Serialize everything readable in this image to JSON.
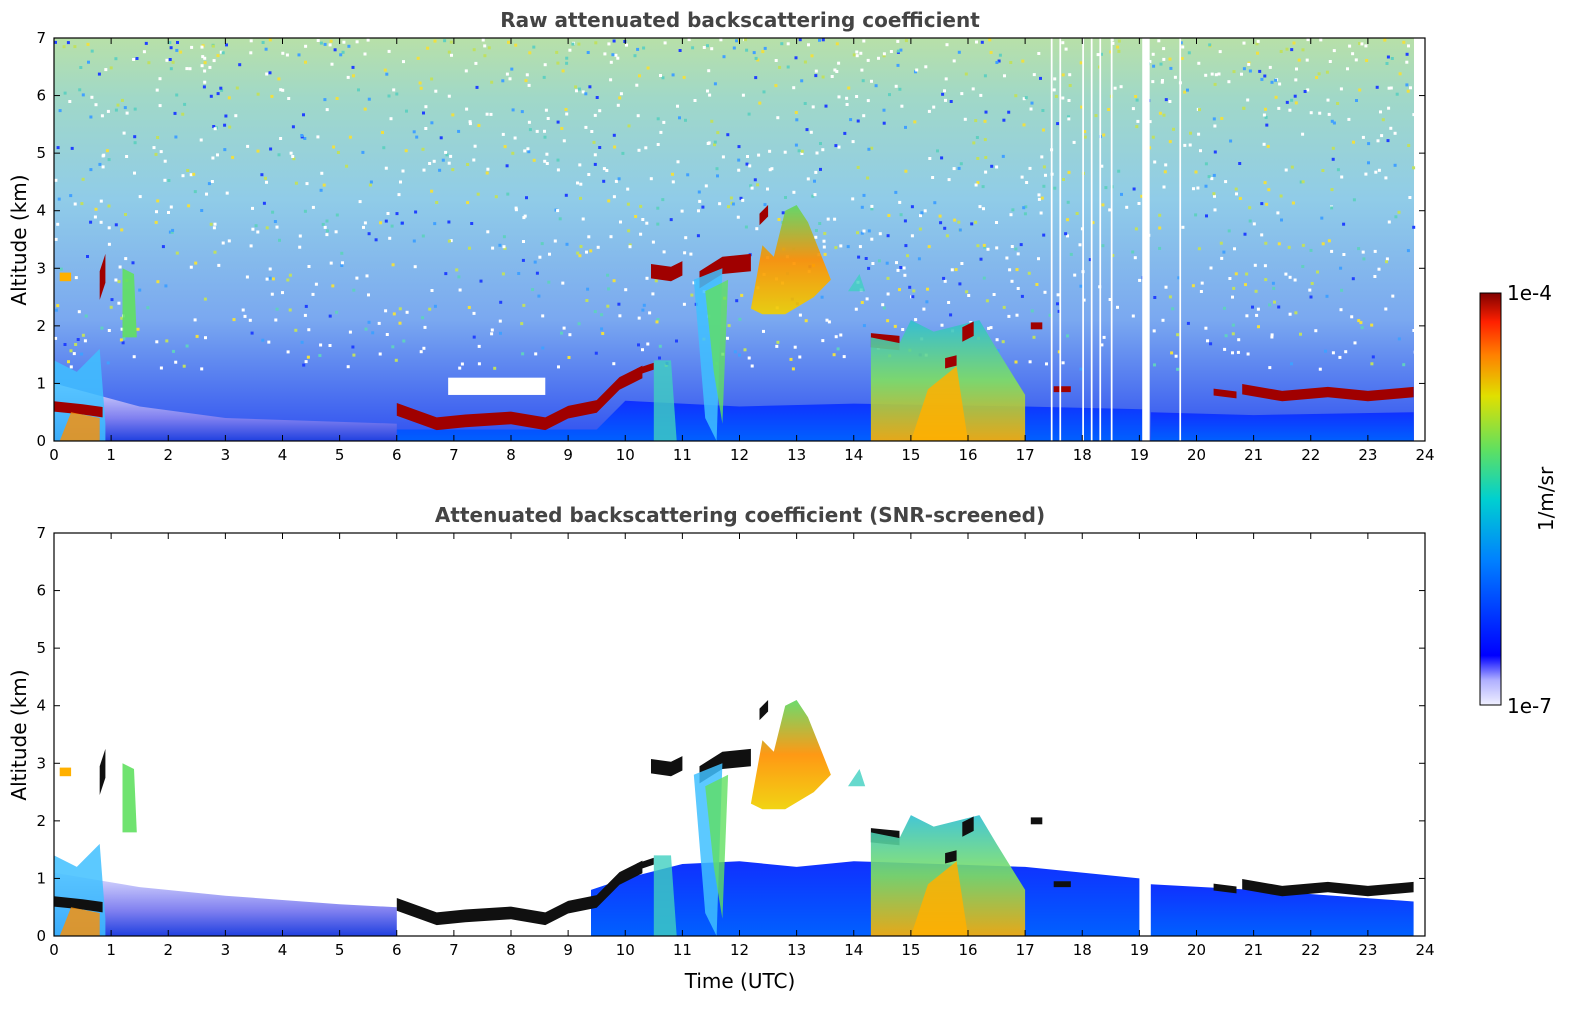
{
  "chart_data": [
    {
      "type": "heatmap",
      "title": "Raw attenuated backscattering coefficient",
      "xlabel": "",
      "ylabel": "Altitude (km)",
      "xlim": [
        0,
        24
      ],
      "ylim": [
        0,
        7
      ],
      "x_ticks": [
        "0",
        "1",
        "2",
        "3",
        "4",
        "5",
        "6",
        "7",
        "8",
        "9",
        "10",
        "11",
        "12",
        "13",
        "14",
        "15",
        "16",
        "17",
        "18",
        "19",
        "20",
        "21",
        "22",
        "23",
        "24"
      ],
      "y_ticks": [
        "0",
        "1",
        "2",
        "3",
        "4",
        "5",
        "6",
        "7"
      ],
      "features": [
        {
          "name": "boundary-layer",
          "t_start": 0,
          "t_end": 23.8,
          "alt_top": 0.9
        },
        {
          "name": "low-cloud",
          "t_start": 0,
          "t_end": 0.9,
          "alt": 0.6
        },
        {
          "name": "low-cloud",
          "t_start": 6.0,
          "t_end": 10.3,
          "alt_start": 0.5,
          "alt_end": 1.2
        },
        {
          "name": "mid-cloud",
          "t_start": 10.4,
          "t_end": 11.0,
          "alt": 2.9
        },
        {
          "name": "mid-cloud",
          "t_start": 11.3,
          "t_end": 12.2,
          "alt": 3.0
        },
        {
          "name": "precip-plume",
          "t_start": 12.2,
          "t_end": 13.6,
          "alt_top": 4.1
        },
        {
          "name": "mid-cloud",
          "t_start": 14.3,
          "t_end": 14.8,
          "alt": 1.7
        },
        {
          "name": "convective-plume",
          "t_start": 14.8,
          "t_end": 17.0,
          "alt_top": 2.0
        },
        {
          "name": "low-cloud",
          "t_start": 20.3,
          "t_end": 23.8,
          "alt": 0.8
        }
      ]
    },
    {
      "type": "heatmap",
      "title": "Attenuated backscattering coefficient (SNR-screened)",
      "xlabel": "Time (UTC)",
      "ylabel": "Altitude (km)",
      "xlim": [
        0,
        24
      ],
      "ylim": [
        0,
        7
      ],
      "x_ticks": [
        "0",
        "1",
        "2",
        "3",
        "4",
        "5",
        "6",
        "7",
        "8",
        "9",
        "10",
        "11",
        "12",
        "13",
        "14",
        "15",
        "16",
        "17",
        "18",
        "19",
        "20",
        "21",
        "22",
        "23",
        "24"
      ],
      "y_ticks": [
        "0",
        "1",
        "2",
        "3",
        "4",
        "5",
        "6",
        "7"
      ]
    }
  ],
  "colorbar": {
    "label": "1/m/sr",
    "max_label": "1e-4",
    "min_label": "1e-7",
    "scale": "log",
    "colors": [
      "#f0f0ff",
      "#b0b0ff",
      "#0000ff",
      "#0080ff",
      "#00d0d0",
      "#60e060",
      "#e0e000",
      "#ff8000",
      "#ff2000",
      "#800000"
    ]
  }
}
